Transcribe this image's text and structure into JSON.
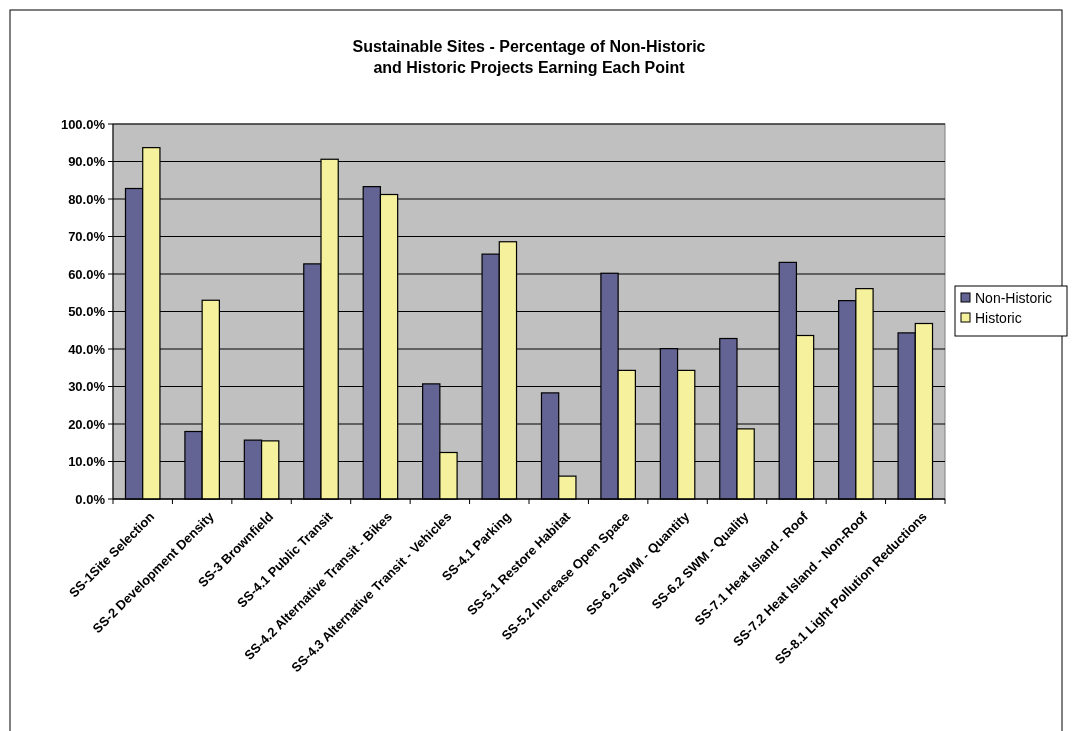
{
  "chart_data": {
    "type": "bar",
    "title": "Sustainable Sites - Percentage of Non-Historic\nand Historic Projects Earning Each Point",
    "categories": [
      "SS-1Site Selection",
      "SS-2 Development Density",
      "SS-3 Brownfield",
      "SS-4.1 Public Transit",
      "SS-4.2 Alternative Transit - Bikes",
      "SS-4.3 Alternative Transit - Vehicles",
      "SS-4.1 Parking",
      "SS-5.1 Restore Habitat",
      "SS-5.2 Increase Open Space",
      "SS-6.2 SWM - Quantity",
      "SS-6.2 SWM - Quality",
      "SS-7.1 Heat Island - Roof",
      "SS-7.2 Heat Island - Non-Roof",
      "SS-8.1 Light Pollution Reductions"
    ],
    "series": [
      {
        "name": "Non-Historic",
        "color": "#636394",
        "values": [
          82.8,
          18,
          15.7,
          62.7,
          83.3,
          30.7,
          65.3,
          28.3,
          60.2,
          40.1,
          42.8,
          63.1,
          52.9,
          44.3
        ]
      },
      {
        "name": "Historic",
        "color": "#f5f19c",
        "values": [
          93.7,
          53,
          15.5,
          90.6,
          81.2,
          12.4,
          68.6,
          6.1,
          34.3,
          34.3,
          18.7,
          43.6,
          56.1,
          46.8
        ]
      }
    ],
    "ylim": [
      0,
      100
    ],
    "yticks": [
      {
        "value": 0,
        "label": "0.0%"
      },
      {
        "value": 10,
        "label": "10.0%"
      },
      {
        "value": 20,
        "label": "20.0%"
      },
      {
        "value": 30,
        "label": "30.0%"
      },
      {
        "value": 40,
        "label": "40.0%"
      },
      {
        "value": 50,
        "label": "50.0%"
      },
      {
        "value": 60,
        "label": "60.0%"
      },
      {
        "value": 70,
        "label": "70.0%"
      },
      {
        "value": 80,
        "label": "80.0%"
      },
      {
        "value": 90,
        "label": "90.0%"
      },
      {
        "value": 100,
        "label": "100.0%"
      }
    ],
    "grid": "y",
    "legend": "right"
  }
}
